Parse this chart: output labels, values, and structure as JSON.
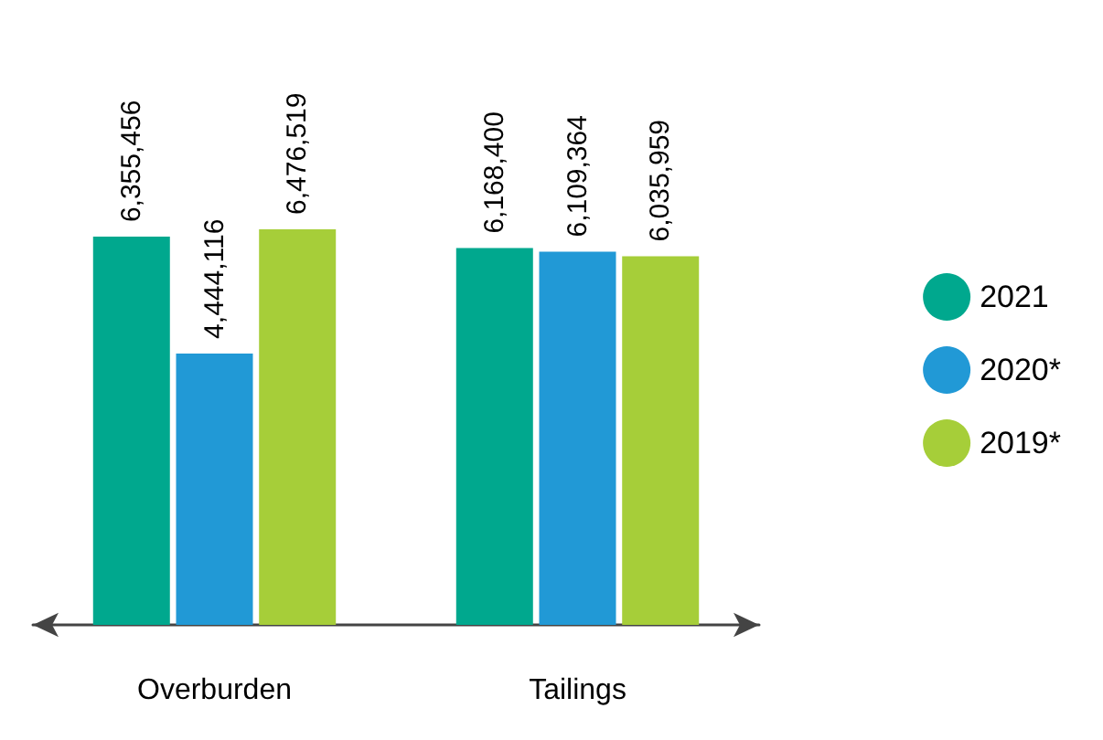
{
  "chart_data": {
    "type": "bar",
    "categories": [
      "Overburden",
      "Tailings"
    ],
    "series": [
      {
        "name": "2021",
        "color": "#00a88e",
        "values": [
          6355456,
          6168400
        ],
        "value_labels": [
          "6,355,456",
          "6,168,400"
        ]
      },
      {
        "name": "2020*",
        "color": "#2199d6",
        "values": [
          4444116,
          6109364
        ],
        "value_labels": [
          "4,444,116",
          "6,109,364"
        ]
      },
      {
        "name": "2019*",
        "color": "#a6ce39",
        "values": [
          6476519,
          6035959
        ],
        "value_labels": [
          "6,476,519",
          "6,035,959"
        ]
      }
    ],
    "legend": "right",
    "grid": false
  }
}
